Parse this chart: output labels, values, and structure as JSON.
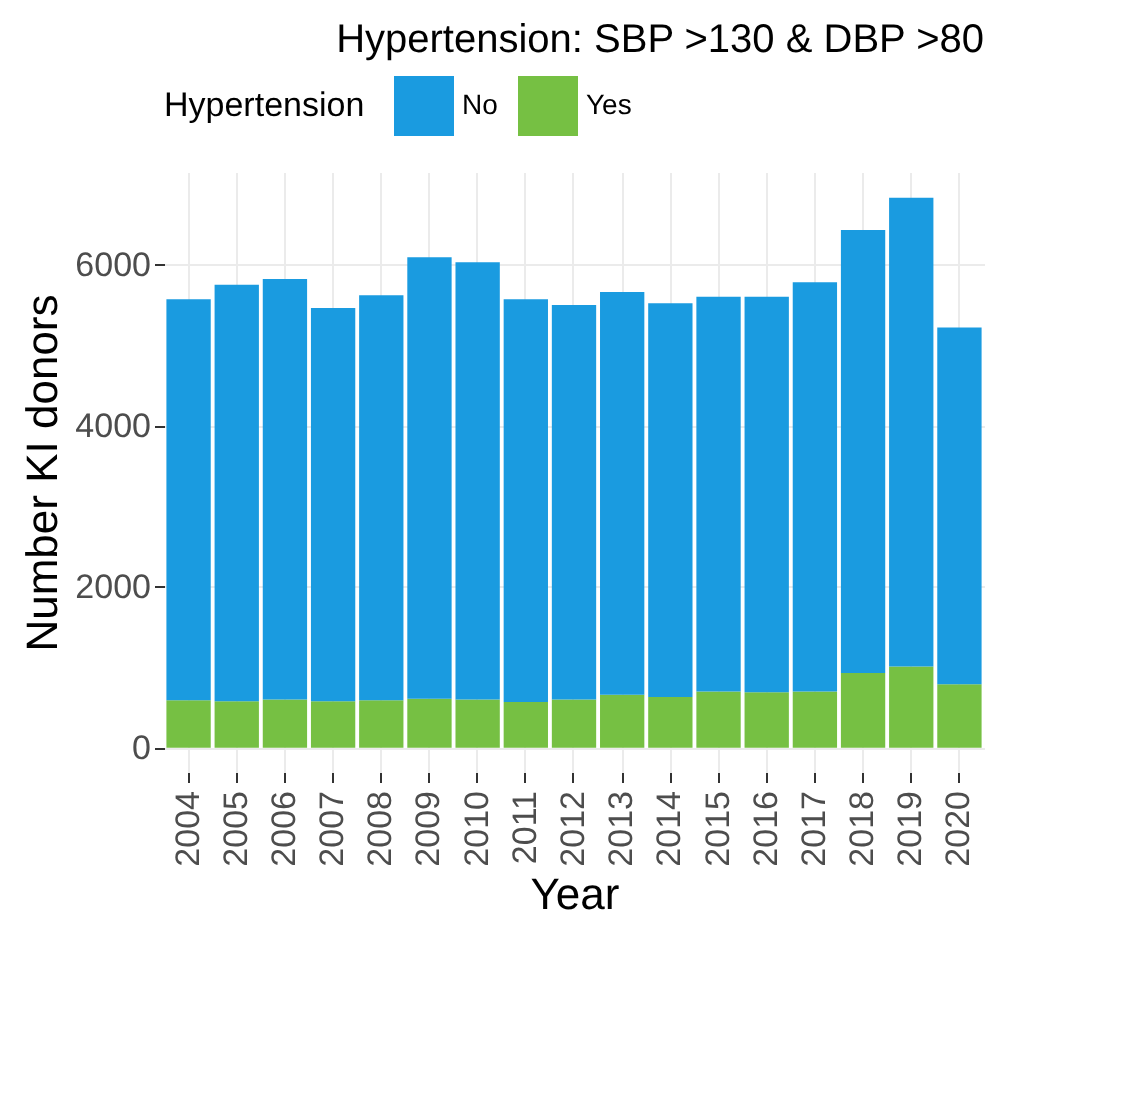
{
  "chart_data": {
    "type": "bar",
    "title": "Hypertension: SBP >130 & DBP >80",
    "xlabel": "Year",
    "ylabel": "Number KI donors",
    "legend_title": "Hypertension",
    "categories": [
      "2004",
      "2005",
      "2006",
      "2007",
      "2008",
      "2009",
      "2010",
      "2011",
      "2012",
      "2013",
      "2014",
      "2015",
      "2016",
      "2017",
      "2018",
      "2019",
      "2020"
    ],
    "series": [
      {
        "name": "Yes",
        "color": "#76c043",
        "values": [
          590,
          580,
          600,
          580,
          590,
          610,
          600,
          570,
          600,
          660,
          630,
          700,
          690,
          700,
          930,
          1010,
          790
        ]
      },
      {
        "name": "No",
        "color": "#1a9be0",
        "values": [
          4980,
          5170,
          5220,
          4880,
          5030,
          5480,
          5430,
          5000,
          4900,
          5000,
          4890,
          4900,
          4910,
          5080,
          5500,
          5820,
          4430
        ]
      }
    ],
    "stacked": true,
    "ylim": [
      -300,
      7150
    ],
    "yticks": [
      0,
      2000,
      4000,
      6000
    ],
    "grid": true,
    "legend": "top"
  }
}
